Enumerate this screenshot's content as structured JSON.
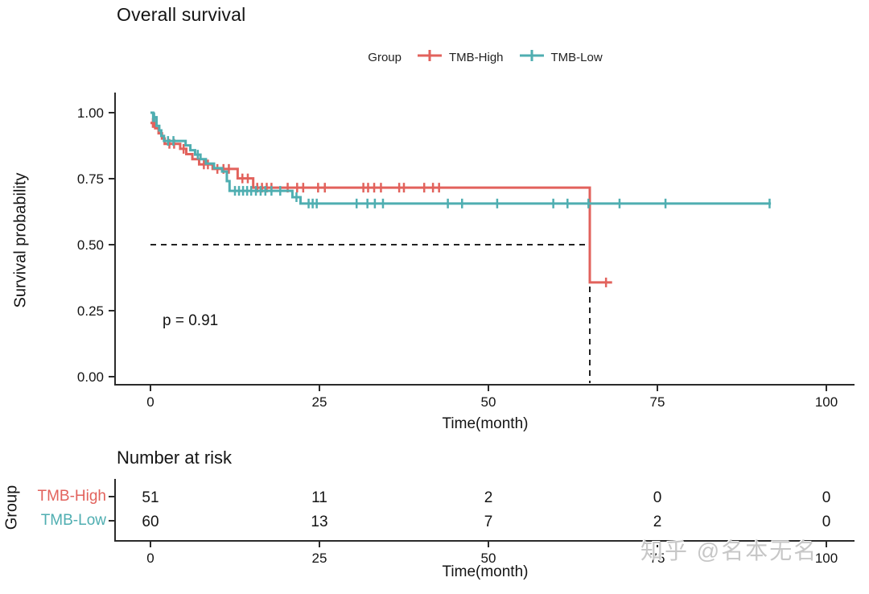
{
  "page": {
    "background": "#ffffff",
    "axis_color": "#2b2b2b",
    "text_color": "#141414"
  },
  "title": "Overall survival",
  "legend": {
    "title": "Group",
    "items": [
      {
        "label": "TMB-High",
        "color": "#E2625C"
      },
      {
        "label": "TMB-Low",
        "color": "#4FAEB1"
      }
    ]
  },
  "y_axis": {
    "label": "Survival probability",
    "ticks": [
      "1.00",
      "0.75",
      "0.50",
      "0.25",
      "0.00"
    ]
  },
  "x_axis": {
    "label": "Time(month)",
    "ticks": [
      "0",
      "25",
      "50",
      "75",
      "100"
    ]
  },
  "annotations": {
    "p_value": "p = 0.91"
  },
  "risk_table": {
    "title": "Number at risk",
    "axis_label": "Group",
    "rows": [
      {
        "name": "TMB-High",
        "color": "#E2625C",
        "values": [
          "51",
          "11",
          "2",
          "0",
          "0"
        ]
      },
      {
        "name": "TMB-Low",
        "color": "#4FAEB1",
        "values": [
          "60",
          "13",
          "7",
          "2",
          "0"
        ]
      }
    ],
    "x_axis": {
      "label": "Time(month)",
      "ticks": [
        "0",
        "25",
        "50",
        "75",
        "100"
      ]
    }
  },
  "watermark": "知乎 @名本无名",
  "chart_data": {
    "type": "line",
    "subtype": "kaplan-meier-step",
    "title": "Overall survival",
    "xlabel": "Time(month)",
    "ylabel": "Survival probability",
    "xlim": [
      0,
      104
    ],
    "ylim": [
      0,
      1
    ],
    "grid": false,
    "legend_position": "top",
    "median_guide": {
      "survival": 0.5,
      "time": 65,
      "style": "dashed"
    },
    "series": [
      {
        "name": "TMB-High",
        "color": "#E2625C",
        "end_time": 68.3,
        "steps": [
          [
            0,
            0.961
          ],
          [
            0.7,
            0.941
          ],
          [
            1.2,
            0.922
          ],
          [
            1.7,
            0.902
          ],
          [
            2.1,
            0.882
          ],
          [
            4.4,
            0.863
          ],
          [
            5.3,
            0.843
          ],
          [
            6.2,
            0.824
          ],
          [
            7.2,
            0.804
          ],
          [
            9.2,
            0.787
          ],
          [
            12.9,
            0.751
          ],
          [
            15.2,
            0.716
          ],
          [
            65,
            0.357
          ]
        ],
        "censors": [
          [
            0.35,
            0.961
          ],
          [
            0.55,
            0.961
          ],
          [
            2.8,
            0.882
          ],
          [
            3.5,
            0.882
          ],
          [
            4.9,
            0.863
          ],
          [
            7.9,
            0.804
          ],
          [
            8.5,
            0.804
          ],
          [
            9.9,
            0.787
          ],
          [
            10.8,
            0.787
          ],
          [
            11.6,
            0.787
          ],
          [
            13.6,
            0.751
          ],
          [
            14.4,
            0.751
          ],
          [
            15.8,
            0.716
          ],
          [
            16.5,
            0.716
          ],
          [
            17.2,
            0.716
          ],
          [
            17.9,
            0.716
          ],
          [
            20.3,
            0.716
          ],
          [
            21.7,
            0.716
          ],
          [
            22.6,
            0.716
          ],
          [
            24.8,
            0.716
          ],
          [
            25.8,
            0.716
          ],
          [
            31.5,
            0.716
          ],
          [
            32.2,
            0.716
          ],
          [
            33.1,
            0.716
          ],
          [
            34.1,
            0.716
          ],
          [
            36.8,
            0.716
          ],
          [
            37.5,
            0.716
          ],
          [
            40.5,
            0.716
          ],
          [
            41.8,
            0.716
          ],
          [
            42.7,
            0.716
          ],
          [
            67.4,
            0.357
          ]
        ]
      },
      {
        "name": "TMB-Low",
        "color": "#4FAEB1",
        "end_time": 91.8,
        "steps": [
          [
            0,
            1.0
          ],
          [
            0.4,
            0.983
          ],
          [
            0.9,
            0.95
          ],
          [
            1.3,
            0.933
          ],
          [
            1.6,
            0.912
          ],
          [
            2.0,
            0.893
          ],
          [
            5.2,
            0.876
          ],
          [
            5.9,
            0.858
          ],
          [
            6.6,
            0.841
          ],
          [
            7.4,
            0.824
          ],
          [
            8.2,
            0.807
          ],
          [
            9.4,
            0.79
          ],
          [
            10.6,
            0.777
          ],
          [
            11.3,
            0.741
          ],
          [
            11.7,
            0.704
          ],
          [
            21.0,
            0.68
          ],
          [
            22.2,
            0.656
          ]
        ],
        "censors": [
          [
            0.4,
            0.983
          ],
          [
            0.55,
            0.983
          ],
          [
            2.6,
            0.893
          ],
          [
            3.4,
            0.893
          ],
          [
            7.0,
            0.841
          ],
          [
            12.5,
            0.704
          ],
          [
            13.1,
            0.704
          ],
          [
            13.7,
            0.704
          ],
          [
            14.3,
            0.704
          ],
          [
            14.9,
            0.704
          ],
          [
            15.6,
            0.704
          ],
          [
            16.3,
            0.704
          ],
          [
            17.0,
            0.704
          ],
          [
            17.9,
            0.704
          ],
          [
            19.2,
            0.704
          ],
          [
            21.6,
            0.68
          ],
          [
            23.4,
            0.656
          ],
          [
            24.0,
            0.656
          ],
          [
            24.6,
            0.656
          ],
          [
            30.5,
            0.656
          ],
          [
            32.1,
            0.656
          ],
          [
            33.2,
            0.656
          ],
          [
            34.4,
            0.656
          ],
          [
            44.0,
            0.656
          ],
          [
            46.1,
            0.656
          ],
          [
            51.3,
            0.656
          ],
          [
            59.6,
            0.656
          ],
          [
            61.7,
            0.656
          ],
          [
            64.8,
            0.656
          ],
          [
            69.4,
            0.656
          ],
          [
            76.2,
            0.656
          ],
          [
            91.6,
            0.656
          ]
        ]
      }
    ],
    "number_at_risk": {
      "times": [
        0,
        25,
        50,
        75,
        100
      ],
      "TMB-High": [
        51,
        11,
        2,
        0,
        0
      ],
      "TMB-Low": [
        60,
        13,
        7,
        2,
        0
      ]
    }
  }
}
